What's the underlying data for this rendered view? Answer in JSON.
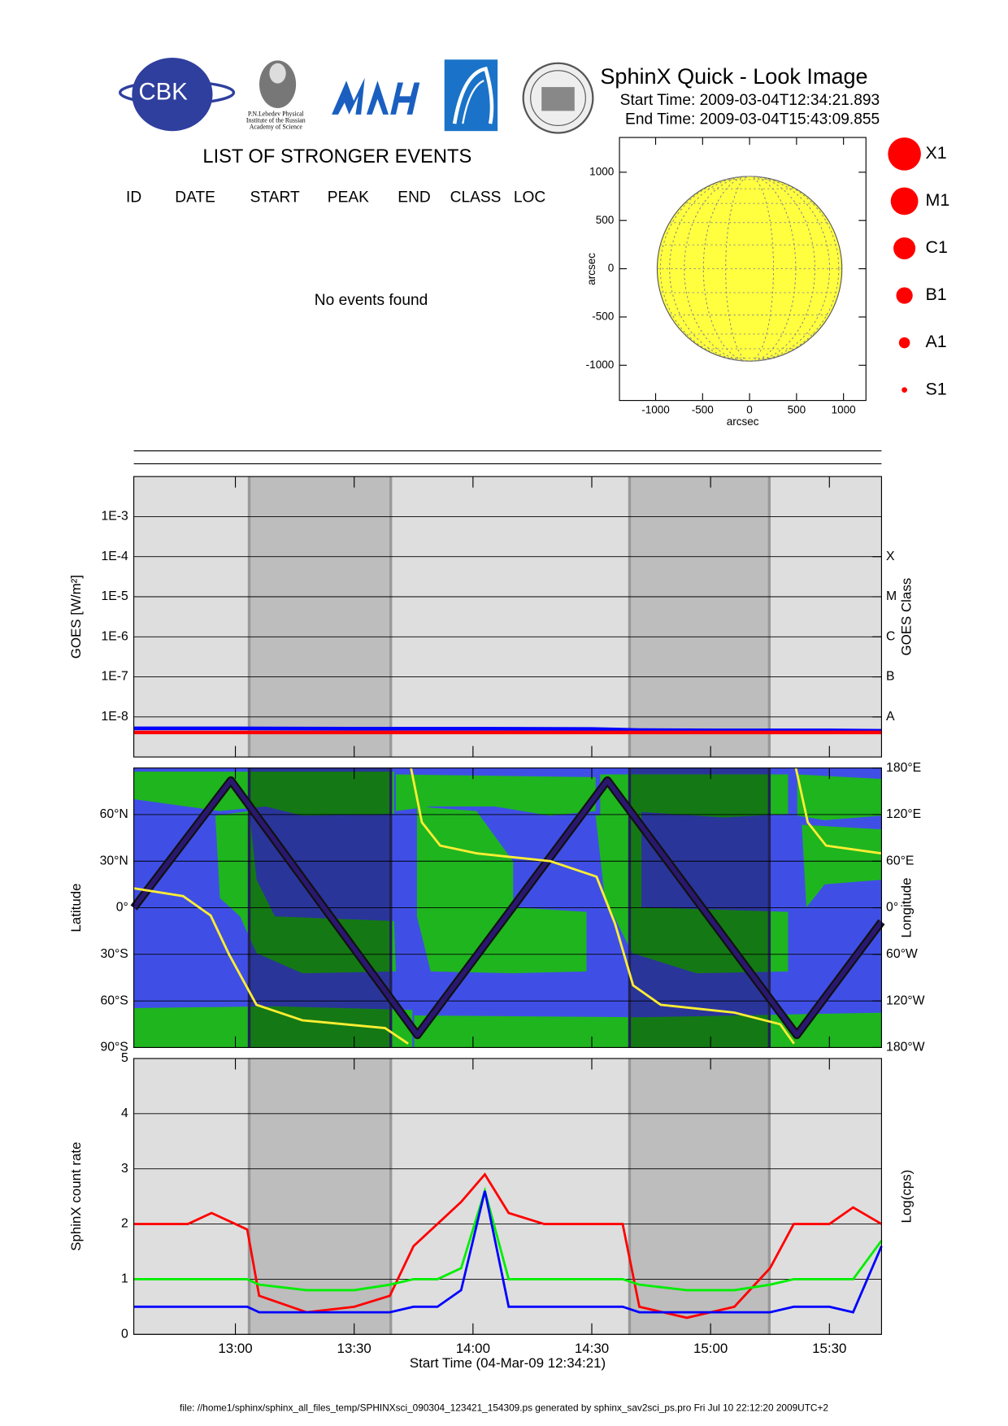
{
  "header": {
    "title": "SphinX Quick - Look Image",
    "start_time": "Start Time: 2009-03-04T12:34:21.893",
    "end_time": "End Time: 2009-03-04T15:43:09.855",
    "logo_text": "CBK",
    "institute": [
      "P.N.Lebedev Physical",
      "Institute of the Russian",
      "Academy of Science"
    ]
  },
  "events": {
    "title": "LIST OF STRONGER EVENTS",
    "columns": [
      "ID",
      "DATE",
      "START",
      "PEAK",
      "END",
      "CLASS",
      "LOC"
    ],
    "message": "No events found"
  },
  "class_legend": {
    "labels": [
      "X1",
      "M1",
      "C1",
      "B1",
      "A1",
      "S1"
    ],
    "color": "#ff0000"
  },
  "footer": "file: //home1/sphinx/sphinx_all_files_temp/SPHINXsci_090304_123421_154309.ps generated by sphinx_sav2sci_ps.pro Fri Jul 10 22:12:20 2009UTC+2",
  "chart_data": [
    {
      "type": "disk",
      "xlabel": "arcsec",
      "ylabel": "arcsec",
      "xlim": [
        -1385,
        1239
      ],
      "ylim": [
        -1365,
        1360
      ],
      "xticks": [
        -1000,
        -500,
        0,
        500,
        1000
      ],
      "yticks": [
        -1000,
        -500,
        0,
        500,
        1000
      ],
      "radius": 970,
      "color": "#ffff40"
    },
    {
      "type": "goes",
      "ylabel": "GOES [W/m²]",
      "y2label": "GOES Class",
      "log_scale": true,
      "xlim": [
        12.5725,
        15.7194
      ],
      "xticks": [
        {
          "value": 13.0,
          "label": "13:00"
        },
        {
          "value": 13.5,
          "label": "13:30"
        },
        {
          "value": 14.0,
          "label": "14:00"
        },
        {
          "value": 14.5,
          "label": "14:30"
        },
        {
          "value": 15.0,
          "label": "15:00"
        },
        {
          "value": 15.5,
          "label": "15:30"
        }
      ],
      "ylim": [
        1e-09,
        0.01
      ],
      "yticks": [
        {
          "value": 1e-08,
          "label": "1E-8"
        },
        {
          "value": 1e-07,
          "label": "1E-7"
        },
        {
          "value": 1e-06,
          "label": "1E-6"
        },
        {
          "value": 1e-05,
          "label": "1E-5"
        },
        {
          "value": 0.0001,
          "label": "1E-4"
        },
        {
          "value": 0.001,
          "label": "1E-3"
        }
      ],
      "y2lim": [
        1e-09,
        0.01
      ],
      "y2ticks": [
        {
          "value": 1e-08,
          "label": "A"
        },
        {
          "value": 1e-07,
          "label": "B"
        },
        {
          "value": 1e-06,
          "label": "C"
        },
        {
          "value": 1e-05,
          "label": "M"
        },
        {
          "value": 0.0001,
          "label": "X"
        }
      ],
      "shaded": [
        [
          13.058,
          13.654
        ],
        [
          14.659,
          15.247
        ]
      ],
      "grid": true,
      "x": [
        12.5725,
        13.0,
        13.5,
        14.0,
        14.5,
        14.7,
        15.0,
        15.5,
        15.7194
      ],
      "series": [
        {
          "color": "#0000ff",
          "values": [
            5.2e-09,
            5.2e-09,
            5.1e-09,
            5.1e-09,
            5e-09,
            4.7e-09,
            4.6e-09,
            4.6e-09,
            4.5e-09
          ]
        },
        {
          "color": "#ff0000",
          "values": [
            4.1e-09,
            4.1e-09,
            4.1e-09,
            4.1e-09,
            4.1e-09,
            4.1e-09,
            4.1e-09,
            4.1e-09,
            4.1e-09
          ]
        }
      ]
    },
    {
      "type": "map",
      "ylabel": "Latitude",
      "y2label": "Longitude",
      "xlim": [
        12.5725,
        15.7194
      ],
      "xticks": [
        {
          "value": 13.0,
          "label": "13:00"
        },
        {
          "value": 13.5,
          "label": "13:30"
        },
        {
          "value": 14.0,
          "label": "14:00"
        },
        {
          "value": 14.5,
          "label": "14:30"
        },
        {
          "value": 15.0,
          "label": "15:00"
        },
        {
          "value": 15.5,
          "label": "15:30"
        }
      ],
      "ylim": [
        -90,
        90
      ],
      "yticks": [
        {
          "value": -90,
          "label": "90°S"
        },
        {
          "value": -60,
          "label": "60°S"
        },
        {
          "value": -30,
          "label": "30°S"
        },
        {
          "value": 0,
          "label": "0°"
        },
        {
          "value": 30,
          "label": "30°N"
        },
        {
          "value": 60,
          "label": "60°N"
        }
      ],
      "y2lim": [
        -180,
        180
      ],
      "y2ticks": [
        {
          "value": -180,
          "label": "180°W"
        },
        {
          "value": -120,
          "label": "120°W"
        },
        {
          "value": -60,
          "label": "60°W"
        },
        {
          "value": 0,
          "label": "0°"
        },
        {
          "value": 60,
          "label": "60°E"
        },
        {
          "value": 120,
          "label": "120°E"
        },
        {
          "value": 180,
          "label": "180°E"
        }
      ],
      "shaded": [
        [
          13.058,
          13.654
        ],
        [
          14.659,
          15.247
        ]
      ],
      "grid": true,
      "series": [
        {
          "color": "#2a1870",
          "x": [
            12.5725,
            12.981,
            13.766,
            14.566,
            15.363,
            15.7194
          ],
          "values": [
            0,
            82,
            -82,
            82,
            -82,
            -9
          ]
        },
        {
          "color": "#ffee33",
          "axis": "y2",
          "x": [
            12.5725,
            12.78,
            12.896,
            12.973,
            13.089,
            13.282,
            13.63,
            13.727,
            13.733,
            13.739,
            13.785,
            13.862,
            14.017,
            14.326,
            14.52,
            14.597,
            14.674,
            14.79,
            15.1,
            15.293,
            15.351,
            15.355,
            15.359,
            15.409,
            15.486,
            15.7194
          ],
          "values": [
            25,
            15,
            -10,
            -60,
            -125,
            -145,
            -155,
            -175,
            null,
            180,
            110,
            80,
            70,
            60,
            40,
            -20,
            -100,
            -125,
            -135,
            -150,
            -175,
            null,
            180,
            110,
            80,
            70
          ]
        }
      ]
    },
    {
      "type": "counts",
      "ylabel": "SphinX count rate",
      "y2label": "Log(cps)",
      "xlabel": "Start Time (04-Mar-09 12:34:21)",
      "xlim": [
        12.5725,
        15.7194
      ],
      "xticks": [
        {
          "value": 13.0,
          "label": "13:00"
        },
        {
          "value": 13.5,
          "label": "13:30"
        },
        {
          "value": 14.0,
          "label": "14:00"
        },
        {
          "value": 14.5,
          "label": "14:30"
        },
        {
          "value": 15.0,
          "label": "15:00"
        },
        {
          "value": 15.5,
          "label": "15:30"
        }
      ],
      "ylim": [
        0,
        5
      ],
      "yticks": [
        0,
        1,
        2,
        3,
        4,
        5
      ],
      "shaded": [
        [
          13.058,
          13.654
        ],
        [
          14.659,
          15.247
        ]
      ],
      "grid": true,
      "x": [
        12.5725,
        12.8,
        12.9,
        13.0,
        13.05,
        13.1,
        13.3,
        13.5,
        13.65,
        13.75,
        13.85,
        13.95,
        14.05,
        14.15,
        14.3,
        14.5,
        14.63,
        14.7,
        14.9,
        15.1,
        15.25,
        15.35,
        15.5,
        15.6,
        15.7194
      ],
      "series": [
        {
          "color": "#ff0000",
          "values": [
            2.0,
            2.0,
            2.2,
            2.0,
            1.9,
            0.7,
            0.4,
            0.5,
            0.7,
            1.6,
            2.0,
            2.4,
            2.9,
            2.2,
            2.0,
            2.0,
            2.0,
            0.5,
            0.3,
            0.5,
            1.2,
            2.0,
            2.0,
            2.3,
            2.0
          ]
        },
        {
          "color": "#00ee00",
          "values": [
            1.0,
            1.0,
            1.0,
            1.0,
            1.0,
            0.9,
            0.8,
            0.8,
            0.9,
            1.0,
            1.0,
            1.2,
            2.6,
            1.0,
            1.0,
            1.0,
            1.0,
            0.9,
            0.8,
            0.8,
            0.9,
            1.0,
            1.0,
            1.0,
            1.7
          ]
        },
        {
          "color": "#0000ff",
          "values": [
            0.5,
            0.5,
            0.5,
            0.5,
            0.5,
            0.4,
            0.4,
            0.4,
            0.4,
            0.5,
            0.5,
            0.8,
            2.6,
            0.5,
            0.5,
            0.5,
            0.5,
            0.4,
            0.4,
            0.4,
            0.4,
            0.5,
            0.5,
            0.4,
            1.6
          ]
        }
      ]
    }
  ]
}
